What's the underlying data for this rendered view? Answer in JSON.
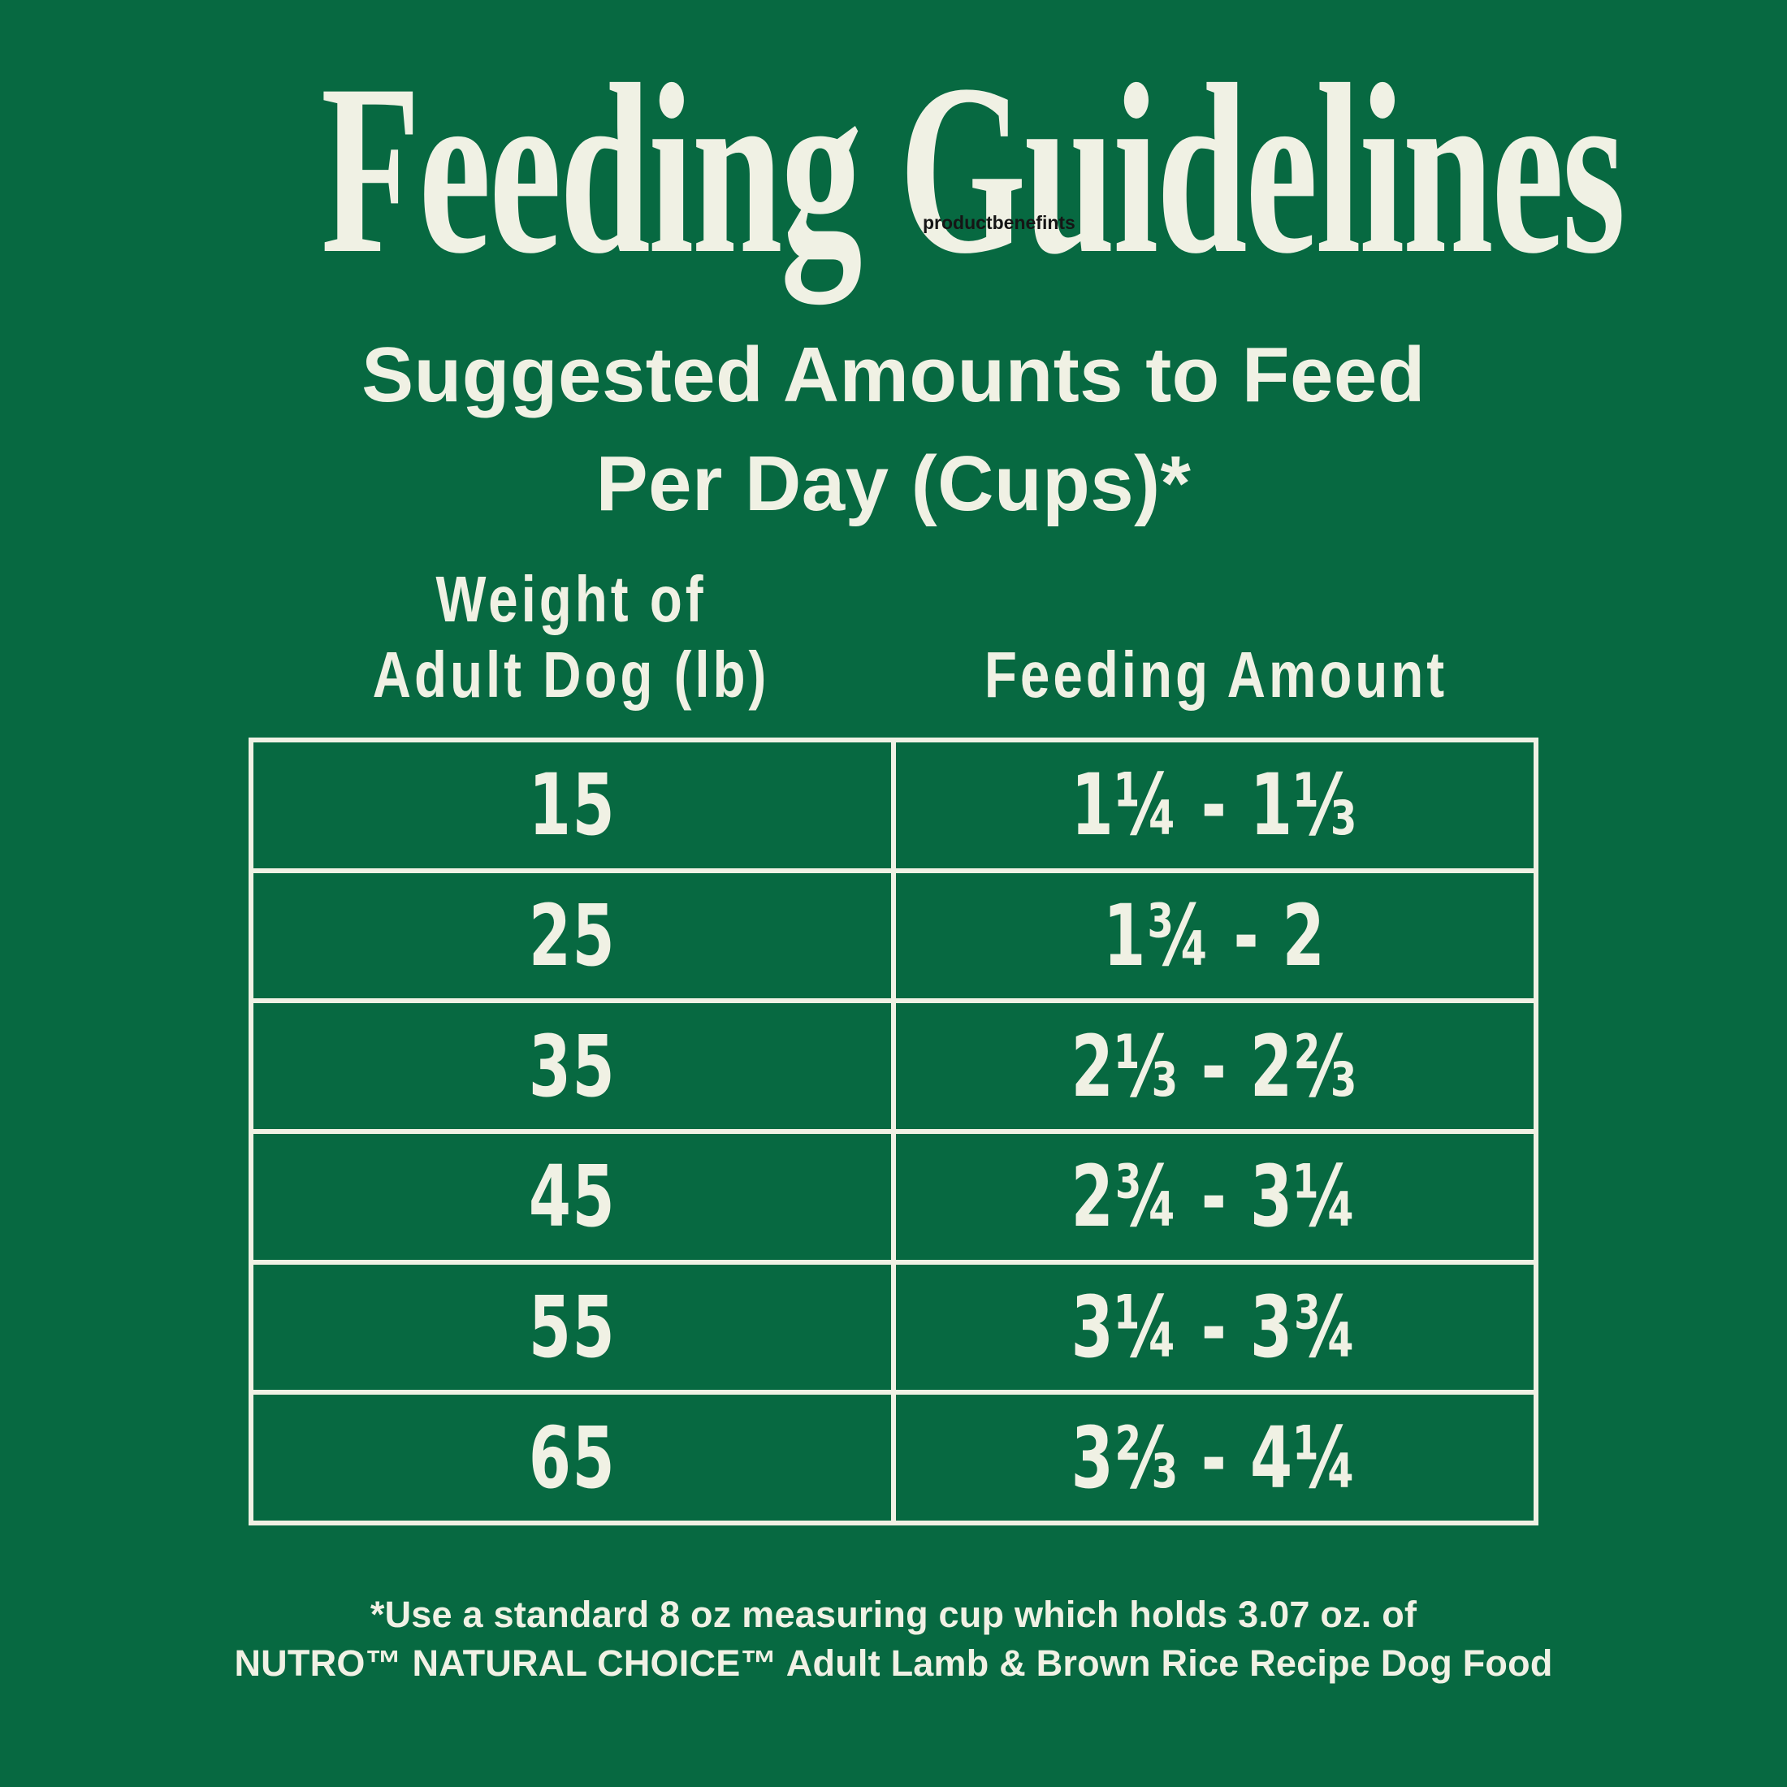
{
  "colors": {
    "background": "#076941",
    "cream": "#F0F1E4",
    "table_border": "#F0F1E4",
    "watermark_text": "#151515"
  },
  "header": {
    "title": "Feeding Guidelines",
    "watermark": "productbenefints"
  },
  "subtitle": {
    "line1": "Suggested Amounts to Feed",
    "line2": "Per Day (Cups)*"
  },
  "table": {
    "col1_header_line1": "Weight of",
    "col1_header_line2": "Adult Dog (lb)",
    "col2_header": "Feeding Amount",
    "rows": [
      {
        "weight": "15",
        "amount": "1¼ - 1⅓"
      },
      {
        "weight": "25",
        "amount": "1¾ - 2"
      },
      {
        "weight": "35",
        "amount": "2⅓ - 2⅔"
      },
      {
        "weight": "45",
        "amount": "2¾ - 3¼"
      },
      {
        "weight": "55",
        "amount": "3¼ - 3¾"
      },
      {
        "weight": "65",
        "amount": "3⅔ - 4¼"
      }
    ]
  },
  "footnote": {
    "line1": "*Use a standard 8 oz measuring cup which holds 3.07 oz. of",
    "line2": "NUTRO™ NATURAL CHOICE™ Adult Lamb & Brown Rice Recipe Dog Food"
  },
  "chart_data": {
    "type": "table",
    "title": "Feeding Guidelines",
    "subtitle": "Suggested Amounts to Feed Per Day (Cups)*",
    "columns": [
      "Weight of Adult Dog (lb)",
      "Feeding Amount"
    ],
    "rows": [
      [
        "15",
        "1¼ - 1⅓"
      ],
      [
        "25",
        "1¾ - 2"
      ],
      [
        "35",
        "2⅓ - 2⅔"
      ],
      [
        "45",
        "2¾ - 3¼"
      ],
      [
        "55",
        "3¼ - 3¾"
      ],
      [
        "65",
        "3⅔ - 4¼"
      ]
    ],
    "footnote": "*Use a standard 8 oz measuring cup which holds 3.07 oz. of NUTRO™ NATURAL CHOICE™ Adult Lamb & Brown Rice Recipe Dog Food"
  }
}
